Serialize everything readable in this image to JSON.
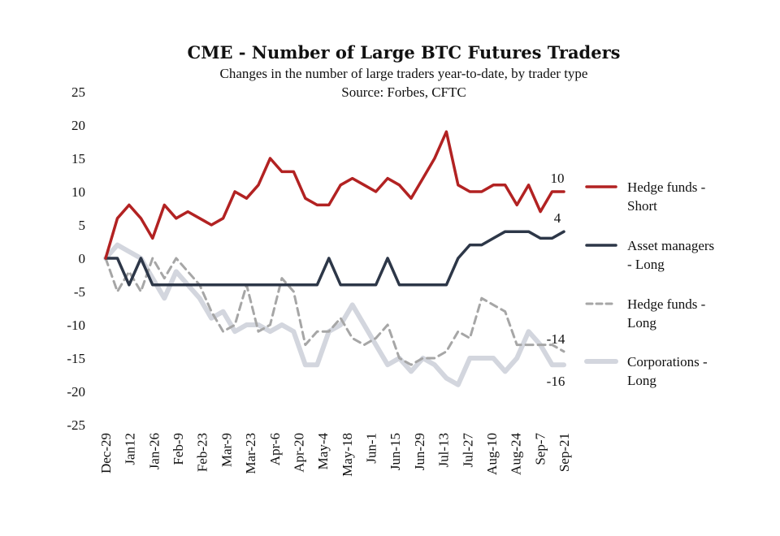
{
  "chart_data": {
    "type": "line",
    "title": "CME - Number of Large BTC Futures Traders",
    "subtitle": "Changes in the number of large traders year-to-date, by trader type",
    "source": "Source: Forbes, CFTC",
    "ylim": [
      -25,
      25
    ],
    "yticks": [
      25,
      20,
      15,
      10,
      5,
      0,
      -5,
      -10,
      -15,
      -20,
      -25
    ],
    "grid": false,
    "legend_position": "right",
    "x_tick_labels": [
      "Dec-29",
      "Jan12",
      "Jan-26",
      "Feb-9",
      "Feb-23",
      "Mar-9",
      "Mar-23",
      "Apr-6",
      "Apr-20",
      "May-4",
      "May-18",
      "Jun-1",
      "Jun-15",
      "Jun-29",
      "Jul-13",
      "Jul-27",
      "Aug-10",
      "Aug-24",
      "Sep-7",
      "Sep-21"
    ],
    "series": [
      {
        "name": "Hedge funds - Short",
        "legend_lines": [
          "Hedge funds -",
          "Short"
        ],
        "color": "#b22222",
        "style": "solid",
        "end_label": "10",
        "values": [
          0,
          6,
          8,
          6,
          3,
          8,
          6,
          7,
          6,
          5,
          6,
          10,
          9,
          11,
          15,
          13,
          13,
          9,
          8,
          8,
          11,
          12,
          11,
          10,
          12,
          11,
          9,
          12,
          15,
          19,
          11,
          10,
          10,
          11,
          11,
          8,
          11,
          7,
          10,
          10
        ]
      },
      {
        "name": "Asset managers - Long",
        "legend_lines": [
          "Asset managers",
          "- Long"
        ],
        "color": "#2d3748",
        "style": "solid",
        "end_label": "4",
        "values": [
          0,
          0,
          -4,
          0,
          -4,
          -4,
          -4,
          -4,
          -4,
          -4,
          -4,
          -4,
          -4,
          -4,
          -4,
          -4,
          -4,
          -4,
          -4,
          0,
          -4,
          -4,
          -4,
          -4,
          0,
          -4,
          -4,
          -4,
          -4,
          -4,
          0,
          2,
          2,
          3,
          4,
          4,
          4,
          3,
          3,
          4
        ]
      },
      {
        "name": "Hedge funds - Long",
        "legend_lines": [
          "Hedge funds -",
          "Long"
        ],
        "color": "#a6a6a6",
        "style": "dashed",
        "end_label": "-14",
        "values": [
          0,
          -5,
          -2,
          -5,
          0,
          -3,
          0,
          -2,
          -4,
          -8,
          -11,
          -10,
          -4,
          -11,
          -10,
          -3,
          -5,
          -13,
          -11,
          -11,
          -9,
          -12,
          -13,
          -12,
          -10,
          -15,
          -16,
          -15,
          -15,
          -14,
          -11,
          -12,
          -6,
          -7,
          -8,
          -13,
          -13,
          -13,
          -13,
          -14
        ]
      },
      {
        "name": "Corporations - Long",
        "legend_lines": [
          "Corporations -",
          "Long"
        ],
        "color": "#d3d6de",
        "style": "solid",
        "end_label": "-16",
        "values": [
          0,
          2,
          1,
          0,
          -3,
          -6,
          -2,
          -4,
          -6,
          -9,
          -8,
          -11,
          -10,
          -10,
          -11,
          -10,
          -11,
          -16,
          -16,
          -11,
          -10,
          -7,
          -10,
          -13,
          -16,
          -15,
          -17,
          -15,
          -16,
          -18,
          -19,
          -15,
          -15,
          -15,
          -17,
          -15,
          -11,
          -13,
          -16,
          -16
        ]
      }
    ]
  }
}
